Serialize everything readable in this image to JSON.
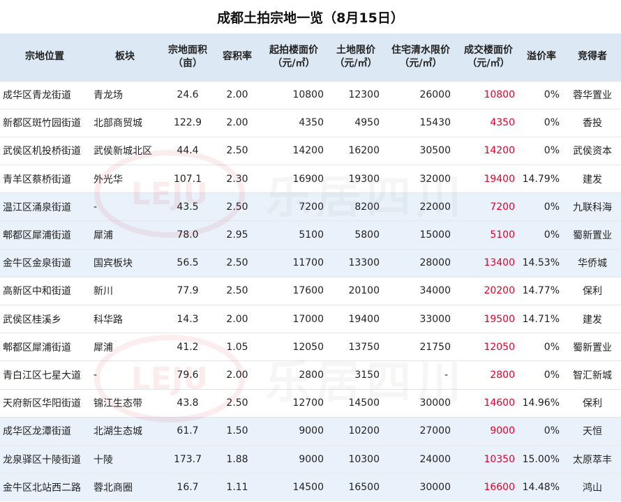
{
  "title": "成都土拍宗地一览（8月15日）",
  "headers": [
    "宗地位置",
    "板块",
    "宗地面积\n（亩）",
    "容积率",
    "起拍楼面价\n（元/㎡）",
    "土地限价\n（元/㎡）",
    "住宅清水限价\n（元/㎡）",
    "成交楼面价\n（元/㎡）",
    "溢价率",
    "竞得者"
  ],
  "rows": [
    {
      "loc": "成华区青龙街道",
      "block": "青龙场",
      "area": "24.6",
      "far": "2.00",
      "start": "10800",
      "land_cap": "12300",
      "res_cap": "26000",
      "deal": "10800",
      "premium": "0%",
      "winner": "蓉华置业"
    },
    {
      "loc": "新都区斑竹园街道",
      "block": "北部商贸城",
      "area": "122.9",
      "far": "2.00",
      "start": "4350",
      "land_cap": "4950",
      "res_cap": "15430",
      "deal": "4350",
      "premium": "0%",
      "winner": "香投"
    },
    {
      "loc": "武侯区机投桥街道",
      "block": "武侯新城北区",
      "area": "44.4",
      "far": "2.50",
      "start": "14200",
      "land_cap": "16200",
      "res_cap": "30500",
      "deal": "14200",
      "premium": "0%",
      "winner": "武侯资本"
    },
    {
      "loc": "青羊区蔡桥街道",
      "block": "外光华",
      "area": "107.1",
      "far": "2.30",
      "start": "16900",
      "land_cap": "19300",
      "res_cap": "32000",
      "deal": "19400",
      "premium": "14.79%",
      "winner": "建发"
    },
    {
      "loc": "温江区涌泉街道",
      "block": "-",
      "area": "43.5",
      "far": "2.50",
      "start": "7200",
      "land_cap": "8200",
      "res_cap": "22000",
      "deal": "7200",
      "premium": "0%",
      "winner": "九联科海"
    },
    {
      "loc": "郫都区犀浦街道",
      "block": "犀浦",
      "area": "78.0",
      "far": "2.95",
      "start": "5100",
      "land_cap": "5800",
      "res_cap": "15000",
      "deal": "5100",
      "premium": "0%",
      "winner": "蜀新置业"
    },
    {
      "loc": "金牛区金泉街道",
      "block": "国宾板块",
      "area": "56.5",
      "far": "2.50",
      "start": "11700",
      "land_cap": "13300",
      "res_cap": "28000",
      "deal": "13400",
      "premium": "14.53%",
      "winner": "华侨城"
    },
    {
      "loc": "高新区中和街道",
      "block": "新川",
      "area": "77.9",
      "far": "2.50",
      "start": "17600",
      "land_cap": "20100",
      "res_cap": "34000",
      "deal": "20200",
      "premium": "14.77%",
      "winner": "保利"
    },
    {
      "loc": "武侯区桂溪乡",
      "block": "科华路",
      "area": "14.3",
      "far": "2.00",
      "start": "17000",
      "land_cap": "19400",
      "res_cap": "33000",
      "deal": "19500",
      "premium": "14.71%",
      "winner": "建发"
    },
    {
      "loc": "郫都区犀浦街道",
      "block": "犀浦",
      "area": "41.2",
      "far": "1.05",
      "start": "12050",
      "land_cap": "13750",
      "res_cap": "21750",
      "deal": "12050",
      "premium": "0%",
      "winner": "蜀新置业"
    },
    {
      "loc": "青白江区七星大道",
      "block": "-",
      "area": "79.6",
      "far": "2.00",
      "start": "2800",
      "land_cap": "3150",
      "res_cap": "-",
      "deal": "2800",
      "premium": "0%",
      "winner": "智汇新城"
    },
    {
      "loc": "天府新区华阳街道",
      "block": "锦江生态带",
      "area": "43.8",
      "far": "2.50",
      "start": "12700",
      "land_cap": "14500",
      "res_cap": "30000",
      "deal": "14600",
      "premium": "14.96%",
      "winner": "保利"
    },
    {
      "loc": "成华区龙潭街道",
      "block": "北湖生态城",
      "area": "61.7",
      "far": "1.50",
      "start": "9000",
      "land_cap": "10200",
      "res_cap": "27000",
      "deal": "9000",
      "premium": "0%",
      "winner": "天恒"
    },
    {
      "loc": "龙泉驿区十陵街道",
      "block": "十陵",
      "area": "173.7",
      "far": "1.88",
      "start": "9000",
      "land_cap": "10300",
      "res_cap": "24000",
      "deal": "10350",
      "premium": "15.00%",
      "winner": "太原萃丰"
    },
    {
      "loc": "金牛区北站西二路",
      "block": "蓉北商圈",
      "area": "16.7",
      "far": "1.11",
      "start": "14500",
      "land_cap": "16500",
      "res_cap": "30000",
      "deal": "16600",
      "premium": "14.48%",
      "winner": "鸿山"
    }
  ],
  "watermark": {
    "logo": "LEJU",
    "text": "乐居四川"
  },
  "colors": {
    "header_bg": "#dde8f5",
    "alt_row_bg": "#e9f1fa",
    "deal_price": "#e4002b"
  }
}
